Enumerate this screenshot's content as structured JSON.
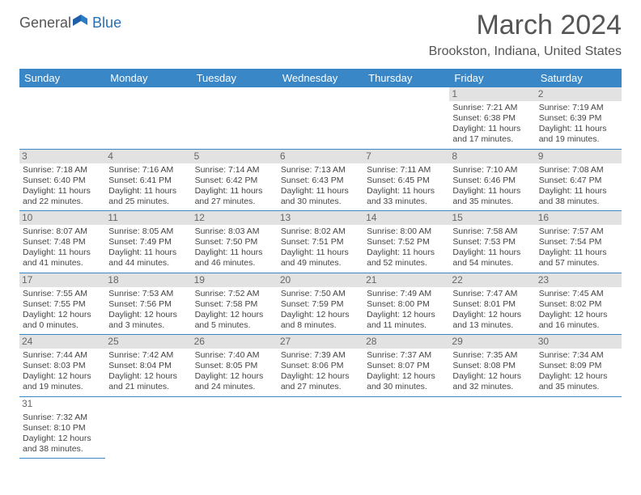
{
  "logo": {
    "text1": "General",
    "text2": "Blue"
  },
  "title": "March 2024",
  "location": "Brookston, Indiana, United States",
  "header_bg": "#3a87c8",
  "weekdays": [
    "Sunday",
    "Monday",
    "Tuesday",
    "Wednesday",
    "Thursday",
    "Friday",
    "Saturday"
  ],
  "weeks": [
    [
      null,
      null,
      null,
      null,
      null,
      {
        "d": "1",
        "sr": "7:21 AM",
        "ss": "6:38 PM",
        "dl": "11 hours and 17 minutes."
      },
      {
        "d": "2",
        "sr": "7:19 AM",
        "ss": "6:39 PM",
        "dl": "11 hours and 19 minutes."
      }
    ],
    [
      {
        "d": "3",
        "sr": "7:18 AM",
        "ss": "6:40 PM",
        "dl": "11 hours and 22 minutes."
      },
      {
        "d": "4",
        "sr": "7:16 AM",
        "ss": "6:41 PM",
        "dl": "11 hours and 25 minutes."
      },
      {
        "d": "5",
        "sr": "7:14 AM",
        "ss": "6:42 PM",
        "dl": "11 hours and 27 minutes."
      },
      {
        "d": "6",
        "sr": "7:13 AM",
        "ss": "6:43 PM",
        "dl": "11 hours and 30 minutes."
      },
      {
        "d": "7",
        "sr": "7:11 AM",
        "ss": "6:45 PM",
        "dl": "11 hours and 33 minutes."
      },
      {
        "d": "8",
        "sr": "7:10 AM",
        "ss": "6:46 PM",
        "dl": "11 hours and 35 minutes."
      },
      {
        "d": "9",
        "sr": "7:08 AM",
        "ss": "6:47 PM",
        "dl": "11 hours and 38 minutes."
      }
    ],
    [
      {
        "d": "10",
        "sr": "8:07 AM",
        "ss": "7:48 PM",
        "dl": "11 hours and 41 minutes."
      },
      {
        "d": "11",
        "sr": "8:05 AM",
        "ss": "7:49 PM",
        "dl": "11 hours and 44 minutes."
      },
      {
        "d": "12",
        "sr": "8:03 AM",
        "ss": "7:50 PM",
        "dl": "11 hours and 46 minutes."
      },
      {
        "d": "13",
        "sr": "8:02 AM",
        "ss": "7:51 PM",
        "dl": "11 hours and 49 minutes."
      },
      {
        "d": "14",
        "sr": "8:00 AM",
        "ss": "7:52 PM",
        "dl": "11 hours and 52 minutes."
      },
      {
        "d": "15",
        "sr": "7:58 AM",
        "ss": "7:53 PM",
        "dl": "11 hours and 54 minutes."
      },
      {
        "d": "16",
        "sr": "7:57 AM",
        "ss": "7:54 PM",
        "dl": "11 hours and 57 minutes."
      }
    ],
    [
      {
        "d": "17",
        "sr": "7:55 AM",
        "ss": "7:55 PM",
        "dl": "12 hours and 0 minutes."
      },
      {
        "d": "18",
        "sr": "7:53 AM",
        "ss": "7:56 PM",
        "dl": "12 hours and 3 minutes."
      },
      {
        "d": "19",
        "sr": "7:52 AM",
        "ss": "7:58 PM",
        "dl": "12 hours and 5 minutes."
      },
      {
        "d": "20",
        "sr": "7:50 AM",
        "ss": "7:59 PM",
        "dl": "12 hours and 8 minutes."
      },
      {
        "d": "21",
        "sr": "7:49 AM",
        "ss": "8:00 PM",
        "dl": "12 hours and 11 minutes."
      },
      {
        "d": "22",
        "sr": "7:47 AM",
        "ss": "8:01 PM",
        "dl": "12 hours and 13 minutes."
      },
      {
        "d": "23",
        "sr": "7:45 AM",
        "ss": "8:02 PM",
        "dl": "12 hours and 16 minutes."
      }
    ],
    [
      {
        "d": "24",
        "sr": "7:44 AM",
        "ss": "8:03 PM",
        "dl": "12 hours and 19 minutes."
      },
      {
        "d": "25",
        "sr": "7:42 AM",
        "ss": "8:04 PM",
        "dl": "12 hours and 21 minutes."
      },
      {
        "d": "26",
        "sr": "7:40 AM",
        "ss": "8:05 PM",
        "dl": "12 hours and 24 minutes."
      },
      {
        "d": "27",
        "sr": "7:39 AM",
        "ss": "8:06 PM",
        "dl": "12 hours and 27 minutes."
      },
      {
        "d": "28",
        "sr": "7:37 AM",
        "ss": "8:07 PM",
        "dl": "12 hours and 30 minutes."
      },
      {
        "d": "29",
        "sr": "7:35 AM",
        "ss": "8:08 PM",
        "dl": "12 hours and 32 minutes."
      },
      {
        "d": "30",
        "sr": "7:34 AM",
        "ss": "8:09 PM",
        "dl": "12 hours and 35 minutes."
      }
    ],
    [
      {
        "d": "31",
        "sr": "7:32 AM",
        "ss": "8:10 PM",
        "dl": "12 hours and 38 minutes."
      },
      null,
      null,
      null,
      null,
      null,
      null
    ]
  ],
  "labels": {
    "sunrise": "Sunrise: ",
    "sunset": "Sunset: ",
    "daylight": "Daylight: "
  }
}
